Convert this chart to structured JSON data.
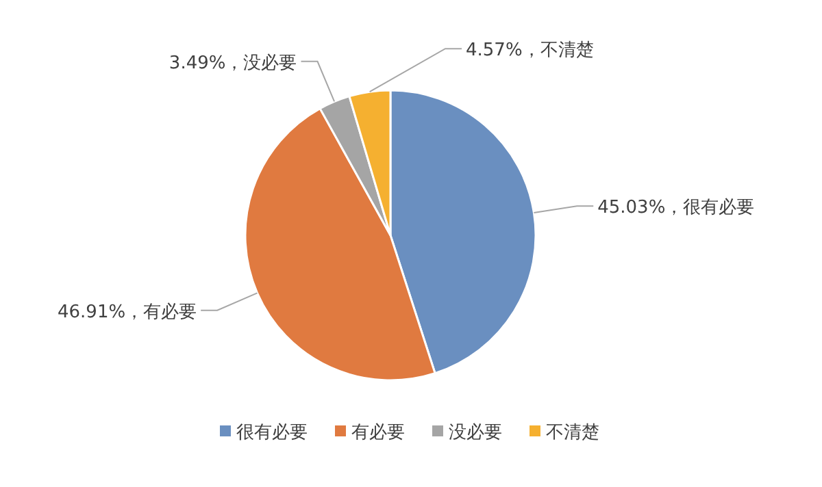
{
  "chart_data": {
    "type": "pie",
    "categories": [
      "很有必要",
      "有必要",
      "没必要",
      "不清楚"
    ],
    "values": [
      45.03,
      46.91,
      3.49,
      4.57
    ],
    "colors": [
      "#6a8fc0",
      "#e07a40",
      "#a5a5a5",
      "#f5b030"
    ],
    "value_labels": [
      "45.03%，很有必要",
      "46.91%，有必要",
      "3.49%，没必要",
      "4.57%，不清楚"
    ],
    "legend": "bottom"
  }
}
